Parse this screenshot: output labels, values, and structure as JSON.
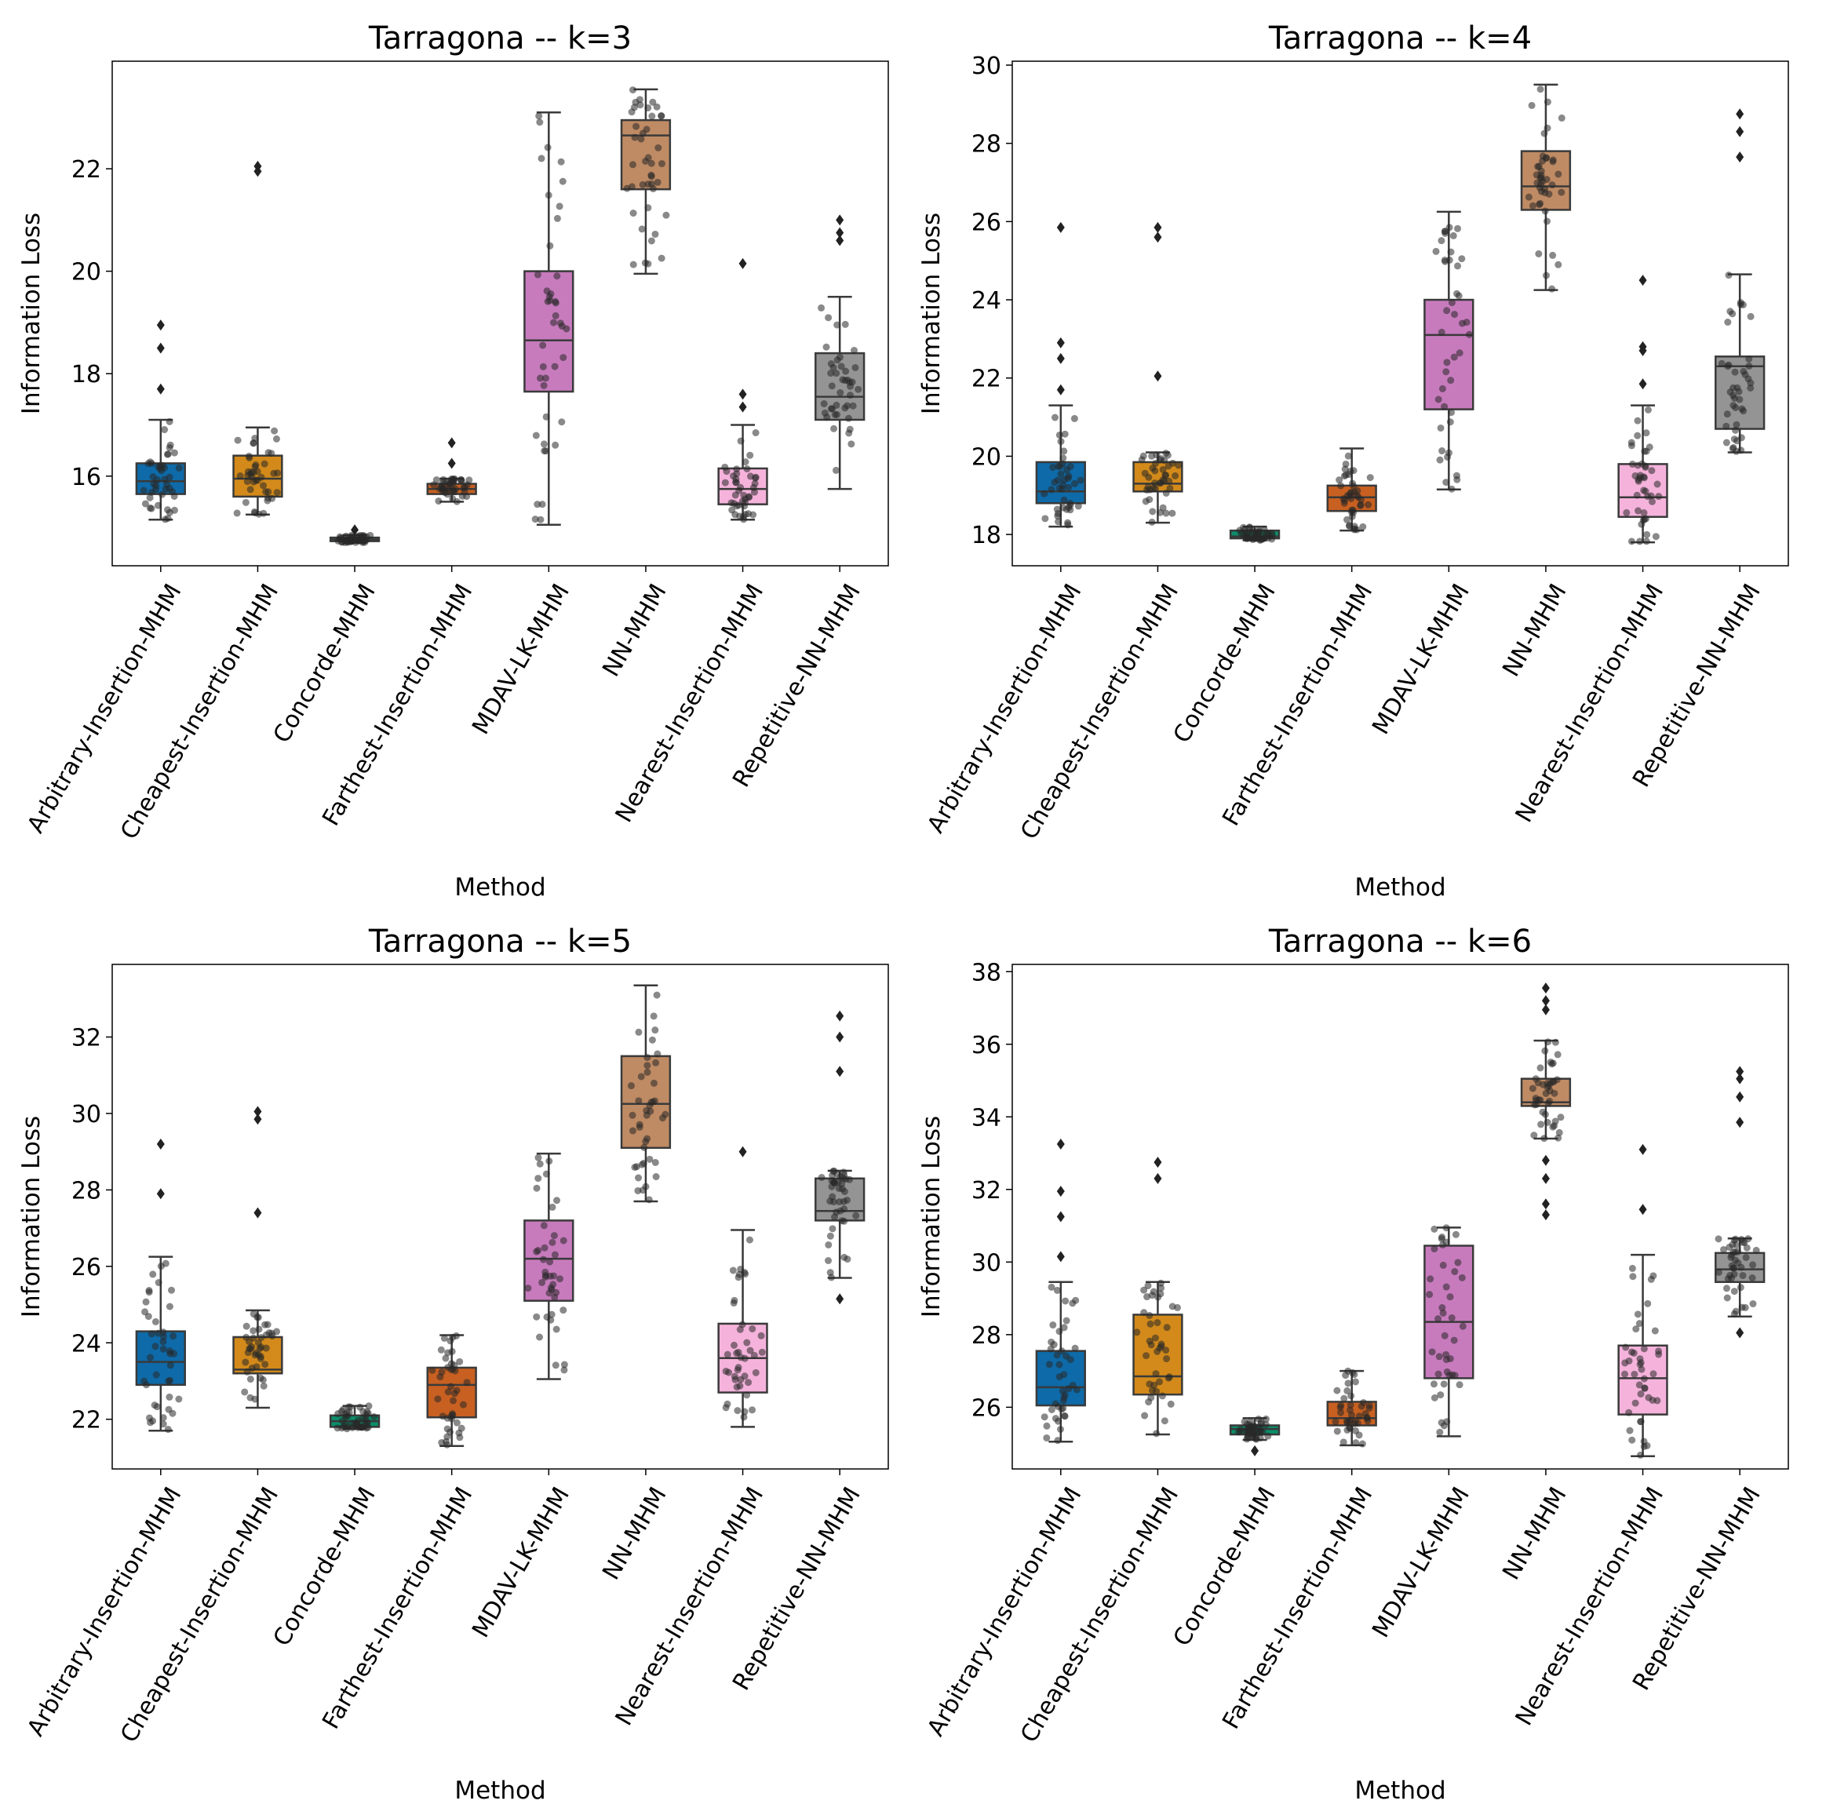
{
  "figure": {
    "xlabel": "Method",
    "ylabel": "Information Loss"
  },
  "chart_data": [
    {
      "type": "box",
      "title": "Tarragona -- k=3",
      "xlabel": "Method",
      "ylabel": "Information Loss",
      "ylim": [
        14.25,
        24.1
      ],
      "yticks": [
        16,
        18,
        20,
        22
      ],
      "categories": [
        "Arbitrary-Insertion-MHM",
        "Cheapest-Insertion-MHM",
        "Concorde-MHM",
        "Farthest-Insertion-MHM",
        "MDAV-LK-MHM",
        "NN-MHM",
        "Nearest-Insertion-MHM",
        "Repetitive-NN-MHM"
      ],
      "boxes": [
        {
          "min": 15.15,
          "q1": 15.65,
          "median": 15.9,
          "q3": 16.25,
          "max": 17.1,
          "outliers": [
            17.7,
            18.5,
            18.95
          ]
        },
        {
          "min": 15.25,
          "q1": 15.6,
          "median": 15.95,
          "q3": 16.4,
          "max": 16.95,
          "outliers": [
            21.95,
            22.05
          ]
        },
        {
          "min": 14.7,
          "q1": 14.73,
          "median": 14.76,
          "q3": 14.8,
          "max": 14.85,
          "outliers": [
            14.95
          ]
        },
        {
          "min": 15.5,
          "q1": 15.65,
          "median": 15.75,
          "q3": 15.85,
          "max": 15.95,
          "outliers": [
            16.25,
            16.65
          ]
        },
        {
          "min": 15.05,
          "q1": 17.65,
          "median": 18.65,
          "q3": 20.0,
          "max": 23.1,
          "outliers": []
        },
        {
          "min": 19.95,
          "q1": 21.6,
          "median": 22.65,
          "q3": 22.95,
          "max": 23.55,
          "outliers": []
        },
        {
          "min": 15.15,
          "q1": 15.45,
          "median": 15.75,
          "q3": 16.15,
          "max": 17.0,
          "outliers": [
            17.35,
            17.6,
            20.15
          ]
        },
        {
          "min": 15.75,
          "q1": 17.1,
          "median": 17.55,
          "q3": 18.4,
          "max": 19.5,
          "outliers": [
            20.6,
            20.75,
            21.0
          ]
        }
      ]
    },
    {
      "type": "box",
      "title": "Tarragona -- k=4",
      "xlabel": "Method",
      "ylabel": "Information Loss",
      "ylim": [
        17.2,
        30.1
      ],
      "yticks": [
        18,
        20,
        22,
        24,
        26,
        28,
        30
      ],
      "categories": [
        "Arbitrary-Insertion-MHM",
        "Cheapest-Insertion-MHM",
        "Concorde-MHM",
        "Farthest-Insertion-MHM",
        "MDAV-LK-MHM",
        "NN-MHM",
        "Nearest-Insertion-MHM",
        "Repetitive-NN-MHM"
      ],
      "boxes": [
        {
          "min": 18.2,
          "q1": 18.8,
          "median": 19.1,
          "q3": 19.85,
          "max": 21.3,
          "outliers": [
            21.7,
            22.5,
            22.9,
            25.85
          ]
        },
        {
          "min": 18.3,
          "q1": 19.1,
          "median": 19.3,
          "q3": 19.85,
          "max": 20.1,
          "outliers": [
            22.05,
            25.6,
            25.85
          ]
        },
        {
          "min": 17.85,
          "q1": 17.9,
          "median": 17.95,
          "q3": 18.1,
          "max": 18.2,
          "outliers": []
        },
        {
          "min": 18.1,
          "q1": 18.6,
          "median": 18.95,
          "q3": 19.25,
          "max": 20.2,
          "outliers": []
        },
        {
          "min": 19.15,
          "q1": 21.2,
          "median": 23.1,
          "q3": 24.0,
          "max": 26.25,
          "outliers": []
        },
        {
          "min": 24.25,
          "q1": 26.3,
          "median": 26.9,
          "q3": 27.8,
          "max": 29.5,
          "outliers": []
        },
        {
          "min": 17.8,
          "q1": 18.45,
          "median": 18.95,
          "q3": 19.8,
          "max": 21.3,
          "outliers": [
            21.85,
            22.7,
            22.8,
            24.5
          ]
        },
        {
          "min": 20.1,
          "q1": 20.7,
          "median": 22.3,
          "q3": 22.55,
          "max": 24.65,
          "outliers": [
            27.65,
            28.3,
            28.75
          ]
        }
      ]
    },
    {
      "type": "box",
      "title": "Tarragona -- k=5",
      "xlabel": "Method",
      "ylabel": "Information Loss",
      "ylim": [
        20.7,
        33.9
      ],
      "yticks": [
        22,
        24,
        26,
        28,
        30,
        32
      ],
      "categories": [
        "Arbitrary-Insertion-MHM",
        "Cheapest-Insertion-MHM",
        "Concorde-MHM",
        "Farthest-Insertion-MHM",
        "MDAV-LK-MHM",
        "NN-MHM",
        "Nearest-Insertion-MHM",
        "Repetitive-NN-MHM"
      ],
      "boxes": [
        {
          "min": 21.7,
          "q1": 22.9,
          "median": 23.5,
          "q3": 24.3,
          "max": 26.25,
          "outliers": [
            27.9,
            29.2
          ]
        },
        {
          "min": 22.3,
          "q1": 23.2,
          "median": 23.3,
          "q3": 24.15,
          "max": 24.85,
          "outliers": [
            27.4,
            29.85,
            30.05
          ]
        },
        {
          "min": 21.75,
          "q1": 21.8,
          "median": 21.95,
          "q3": 22.1,
          "max": 22.35,
          "outliers": []
        },
        {
          "min": 21.3,
          "q1": 22.05,
          "median": 22.9,
          "q3": 23.35,
          "max": 24.2,
          "outliers": []
        },
        {
          "min": 23.05,
          "q1": 25.1,
          "median": 26.2,
          "q3": 27.2,
          "max": 28.95,
          "outliers": []
        },
        {
          "min": 27.7,
          "q1": 29.1,
          "median": 30.25,
          "q3": 31.5,
          "max": 33.35,
          "outliers": []
        },
        {
          "min": 21.8,
          "q1": 22.7,
          "median": 23.6,
          "q3": 24.5,
          "max": 26.95,
          "outliers": [
            29.0
          ]
        },
        {
          "min": 25.7,
          "q1": 27.2,
          "median": 27.45,
          "q3": 28.3,
          "max": 28.5,
          "outliers": [
            25.15,
            31.1,
            32.0,
            32.55
          ]
        }
      ]
    },
    {
      "type": "box",
      "title": "Tarragona -- k=6",
      "xlabel": "Method",
      "ylabel": "Information Loss",
      "ylim": [
        24.3,
        38.2
      ],
      "yticks": [
        26,
        28,
        30,
        32,
        34,
        36,
        38
      ],
      "categories": [
        "Arbitrary-Insertion-MHM",
        "Cheapest-Insertion-MHM",
        "Concorde-MHM",
        "Farthest-Insertion-MHM",
        "MDAV-LK-MHM",
        "NN-MHM",
        "Nearest-Insertion-MHM",
        "Repetitive-NN-MHM"
      ],
      "boxes": [
        {
          "min": 25.05,
          "q1": 26.05,
          "median": 26.55,
          "q3": 27.55,
          "max": 29.45,
          "outliers": [
            30.15,
            31.25,
            31.95,
            33.25
          ]
        },
        {
          "min": 25.25,
          "q1": 26.35,
          "median": 26.85,
          "q3": 28.55,
          "max": 29.45,
          "outliers": [
            32.3,
            32.75
          ]
        },
        {
          "min": 25.1,
          "q1": 25.25,
          "median": 25.4,
          "q3": 25.5,
          "max": 25.7,
          "outliers": [
            24.8
          ]
        },
        {
          "min": 24.95,
          "q1": 25.5,
          "median": 25.7,
          "q3": 26.15,
          "max": 27.0,
          "outliers": []
        },
        {
          "min": 25.2,
          "q1": 26.8,
          "median": 28.35,
          "q3": 30.45,
          "max": 30.95,
          "outliers": []
        },
        {
          "min": 33.4,
          "q1": 34.3,
          "median": 34.4,
          "q3": 35.05,
          "max": 36.1,
          "outliers": [
            31.3,
            31.6,
            32.3,
            32.8,
            36.95,
            37.2,
            37.55
          ]
        },
        {
          "min": 24.65,
          "q1": 25.8,
          "median": 26.8,
          "q3": 27.7,
          "max": 30.2,
          "outliers": [
            31.45,
            33.1
          ]
        },
        {
          "min": 28.5,
          "q1": 29.45,
          "median": 29.8,
          "q3": 30.25,
          "max": 30.65,
          "outliers": [
            28.05,
            33.85,
            34.55,
            35.05,
            35.25
          ]
        }
      ]
    }
  ],
  "colors": [
    "#0e6aa8",
    "#d38a1a",
    "#0b8e6b",
    "#c86021",
    "#c77bbd",
    "#bf8b64",
    "#f5b3dc",
    "#949494"
  ]
}
